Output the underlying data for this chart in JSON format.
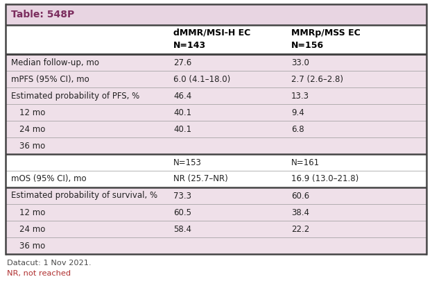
{
  "title": "Table: 548P",
  "title_color": "#7B2D5E",
  "title_bg": "#E8D5E2",
  "col1_header": "dMMR/MSI-H EC\nN=143",
  "col2_header": "MMRp/MSS EC\nN=156",
  "rows": [
    {
      "label": "Median follow-up, mo",
      "indent": false,
      "col1": "27.6",
      "col2": "33.0",
      "bg": "#EFE0E9",
      "sep_before": true,
      "sep_after": false
    },
    {
      "label": "mPFS (95% CI), mo",
      "indent": false,
      "col1": "6.0 (4.1–18.0)",
      "col2": "2.7 (2.6–2.8)",
      "bg": "#EFE0E9",
      "sep_before": false,
      "sep_after": false
    },
    {
      "label": "Estimated probability of PFS, %",
      "indent": false,
      "col1": "46.4",
      "col2": "13.3",
      "bg": "#EFE0E9",
      "sep_before": false,
      "sep_after": false
    },
    {
      "label": "12 mo",
      "indent": true,
      "col1": "40.1",
      "col2": "9.4",
      "bg": "#EFE0E9",
      "sep_before": false,
      "sep_after": false
    },
    {
      "label": "24 mo",
      "indent": true,
      "col1": "40.1",
      "col2": "6.8",
      "bg": "#EFE0E9",
      "sep_before": false,
      "sep_after": false
    },
    {
      "label": "36 mo",
      "indent": true,
      "col1": "",
      "col2": "",
      "bg": "#EFE0E9",
      "sep_before": false,
      "sep_after": true
    },
    {
      "label": "",
      "indent": false,
      "col1": "N=153",
      "col2": "N=161",
      "bg": "#FFFFFF",
      "sep_before": false,
      "sep_after": true
    },
    {
      "label": "mOS (95% CI), mo",
      "indent": false,
      "col1": "NR (25.7–NR)",
      "col2": "16.9 (13.0–21.8)",
      "bg": "#FFFFFF",
      "sep_before": false,
      "sep_after": false
    },
    {
      "label": "Estimated probability of survival, %",
      "indent": false,
      "col1": "73.3",
      "col2": "60.6",
      "bg": "#EFE0E9",
      "sep_before": true,
      "sep_after": false
    },
    {
      "label": "12 mo",
      "indent": true,
      "col1": "60.5",
      "col2": "38.4",
      "bg": "#EFE0E9",
      "sep_before": false,
      "sep_after": false
    },
    {
      "label": "24 mo",
      "indent": true,
      "col1": "58.4",
      "col2": "22.2",
      "bg": "#EFE0E9",
      "sep_before": false,
      "sep_after": false
    },
    {
      "label": "36 mo",
      "indent": true,
      "col1": "",
      "col2": "",
      "bg": "#EFE0E9",
      "sep_before": false,
      "sep_after": false
    }
  ],
  "footnotes": [
    "Datacut: 1 Nov 2021.",
    "NR, not reached"
  ],
  "footnote_colors": [
    "#4A4A4A",
    "#B03030"
  ],
  "border_color": "#444444",
  "thin_line_color": "#999999",
  "text_color": "#222222",
  "font_size": 8.5,
  "header_font_size": 9.0,
  "title_font_size": 10.0
}
